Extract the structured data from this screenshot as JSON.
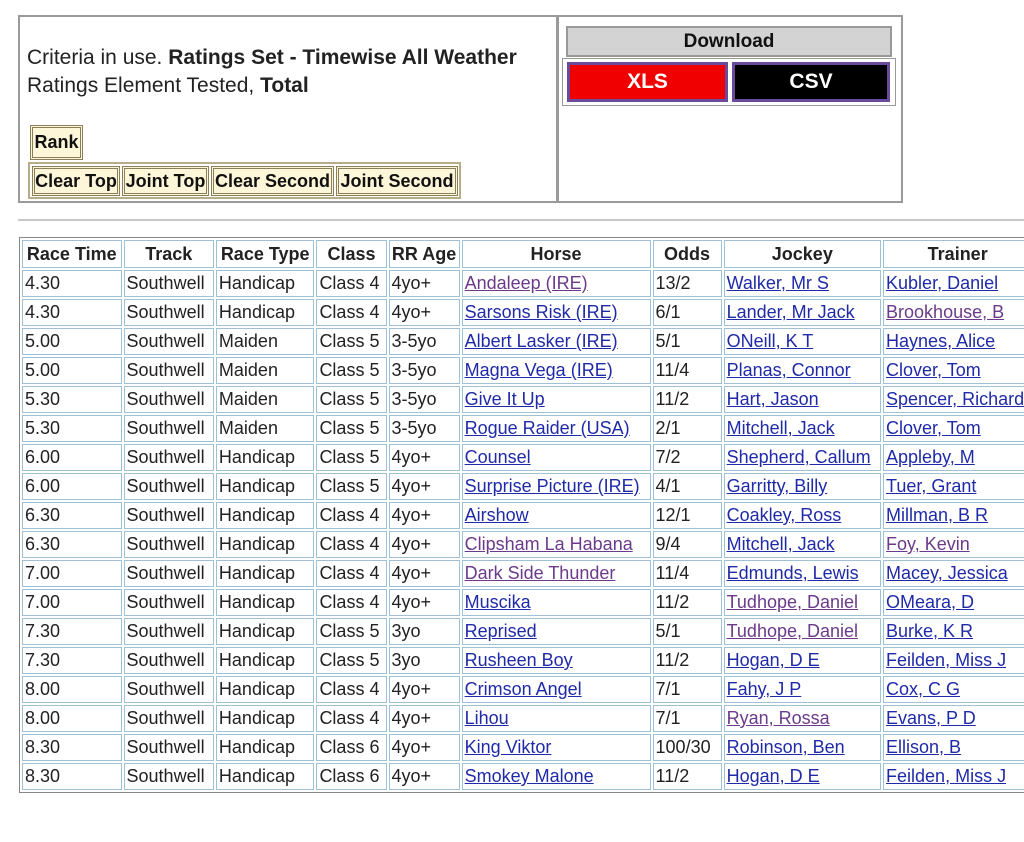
{
  "criteria": {
    "prefix": "Criteria in use.",
    "ratings_set": "Ratings Set - Timewise All Weather",
    "element_prefix": "Ratings Element Tested,",
    "element": "Total"
  },
  "buttons": {
    "rank": "Rank",
    "sort": [
      "Clear Top",
      "Joint Top",
      "Clear Second",
      "Joint Second"
    ]
  },
  "download": {
    "title": "Download",
    "xls": "XLS",
    "csv": "CSV"
  },
  "table": {
    "headers": [
      "Race Time",
      "Track",
      "Race Type",
      "Class",
      "RR Age",
      "Horse",
      "Odds",
      "Jockey",
      "Trainer"
    ],
    "rows": [
      [
        "4.30",
        "Southwell",
        "Handicap",
        "Class 4",
        "4yo+",
        {
          "text": "Andaleep (IRE)",
          "visited": true
        },
        "13/2",
        {
          "text": "Walker, Mr S",
          "visited": false
        },
        {
          "text": "Kubler, Daniel",
          "visited": false
        }
      ],
      [
        "4.30",
        "Southwell",
        "Handicap",
        "Class 4",
        "4yo+",
        {
          "text": "Sarsons Risk (IRE)",
          "visited": false
        },
        "6/1",
        {
          "text": "Lander, Mr Jack",
          "visited": false
        },
        {
          "text": "Brookhouse, B",
          "visited": true
        }
      ],
      [
        "5.00",
        "Southwell",
        "Maiden",
        "Class 5",
        "3-5yo",
        {
          "text": "Albert Lasker (IRE)",
          "visited": false
        },
        "5/1",
        {
          "text": "ONeill, K T",
          "visited": false
        },
        {
          "text": "Haynes, Alice",
          "visited": false
        }
      ],
      [
        "5.00",
        "Southwell",
        "Maiden",
        "Class 5",
        "3-5yo",
        {
          "text": "Magna Vega (IRE)",
          "visited": false
        },
        "11/4",
        {
          "text": "Planas, Connor",
          "visited": false
        },
        {
          "text": "Clover, Tom",
          "visited": false
        }
      ],
      [
        "5.30",
        "Southwell",
        "Maiden",
        "Class 5",
        "3-5yo",
        {
          "text": "Give It Up",
          "visited": false
        },
        "11/2",
        {
          "text": "Hart, Jason",
          "visited": false
        },
        {
          "text": "Spencer, Richard",
          "visited": false
        }
      ],
      [
        "5.30",
        "Southwell",
        "Maiden",
        "Class 5",
        "3-5yo",
        {
          "text": "Rogue Raider (USA)",
          "visited": false
        },
        "2/1",
        {
          "text": "Mitchell, Jack",
          "visited": false
        },
        {
          "text": "Clover, Tom",
          "visited": false
        }
      ],
      [
        "6.00",
        "Southwell",
        "Handicap",
        "Class 5",
        "4yo+",
        {
          "text": "Counsel",
          "visited": false
        },
        "7/2",
        {
          "text": "Shepherd, Callum",
          "visited": false
        },
        {
          "text": "Appleby, M",
          "visited": false
        }
      ],
      [
        "6.00",
        "Southwell",
        "Handicap",
        "Class 5",
        "4yo+",
        {
          "text": "Surprise Picture (IRE)",
          "visited": false
        },
        "4/1",
        {
          "text": "Garritty, Billy",
          "visited": false
        },
        {
          "text": "Tuer, Grant",
          "visited": false
        }
      ],
      [
        "6.30",
        "Southwell",
        "Handicap",
        "Class 4",
        "4yo+",
        {
          "text": "Airshow",
          "visited": false
        },
        "12/1",
        {
          "text": "Coakley, Ross",
          "visited": false
        },
        {
          "text": "Millman, B R",
          "visited": false
        }
      ],
      [
        "6.30",
        "Southwell",
        "Handicap",
        "Class 4",
        "4yo+",
        {
          "text": "Clipsham La Habana",
          "visited": true
        },
        "9/4",
        {
          "text": "Mitchell, Jack",
          "visited": false
        },
        {
          "text": "Foy, Kevin",
          "visited": true
        }
      ],
      [
        "7.00",
        "Southwell",
        "Handicap",
        "Class 4",
        "4yo+",
        {
          "text": "Dark Side Thunder",
          "visited": true
        },
        "11/4",
        {
          "text": "Edmunds, Lewis",
          "visited": false
        },
        {
          "text": "Macey, Jessica",
          "visited": false
        }
      ],
      [
        "7.00",
        "Southwell",
        "Handicap",
        "Class 4",
        "4yo+",
        {
          "text": "Muscika",
          "visited": false
        },
        "11/2",
        {
          "text": "Tudhope, Daniel",
          "visited": true
        },
        {
          "text": "OMeara, D",
          "visited": false
        }
      ],
      [
        "7.30",
        "Southwell",
        "Handicap",
        "Class 5",
        "3yo",
        {
          "text": "Reprised",
          "visited": false
        },
        "5/1",
        {
          "text": "Tudhope, Daniel",
          "visited": true
        },
        {
          "text": "Burke, K R",
          "visited": false
        }
      ],
      [
        "7.30",
        "Southwell",
        "Handicap",
        "Class 5",
        "3yo",
        {
          "text": "Rusheen Boy",
          "visited": false
        },
        "11/2",
        {
          "text": "Hogan, D E",
          "visited": false
        },
        {
          "text": "Feilden, Miss J",
          "visited": false
        }
      ],
      [
        "8.00",
        "Southwell",
        "Handicap",
        "Class 4",
        "4yo+",
        {
          "text": "Crimson Angel",
          "visited": false
        },
        "7/1",
        {
          "text": "Fahy, J P",
          "visited": false
        },
        {
          "text": "Cox, C G",
          "visited": false
        }
      ],
      [
        "8.00",
        "Southwell",
        "Handicap",
        "Class 4",
        "4yo+",
        {
          "text": "Lihou",
          "visited": false
        },
        "7/1",
        {
          "text": "Ryan, Rossa",
          "visited": true
        },
        {
          "text": "Evans, P D",
          "visited": false
        }
      ],
      [
        "8.30",
        "Southwell",
        "Handicap",
        "Class 6",
        "4yo+",
        {
          "text": "King Viktor",
          "visited": false
        },
        "100/30",
        {
          "text": "Robinson, Ben",
          "visited": false
        },
        {
          "text": "Ellison, B",
          "visited": false
        }
      ],
      [
        "8.30",
        "Southwell",
        "Handicap",
        "Class 6",
        "4yo+",
        {
          "text": "Smokey Malone",
          "visited": false
        },
        "11/2",
        {
          "text": "Hogan, D E",
          "visited": false
        },
        {
          "text": "Feilden, Miss J",
          "visited": false
        }
      ]
    ]
  }
}
